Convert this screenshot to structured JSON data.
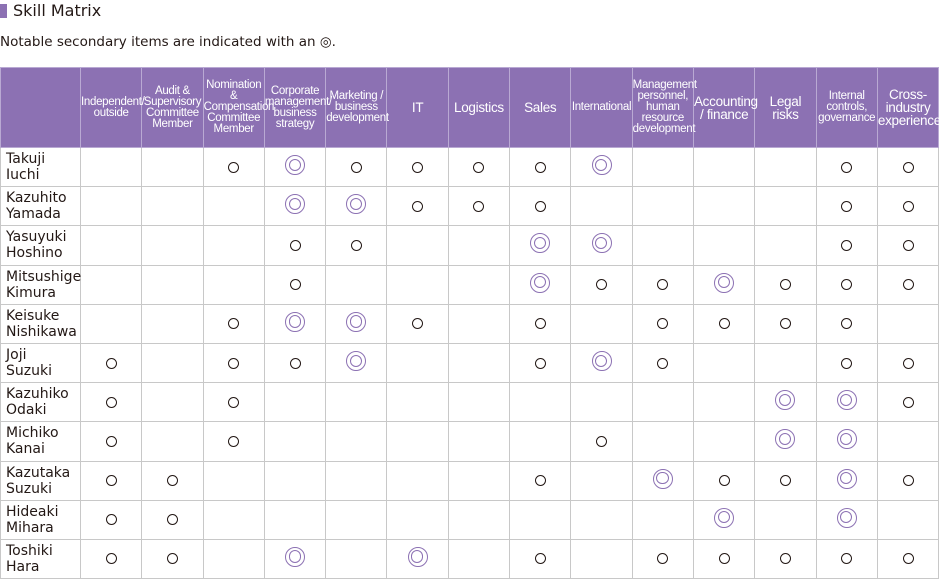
{
  "title": "Skill Matrix",
  "note": "Notable secondary items are indicated with an ◎.",
  "colors": {
    "header_bg": "#8c71b3",
    "title_bar": "#8c71b3",
    "secondary_mark": "#8c71b3",
    "primary_mark": "#231815"
  },
  "legend": {
    "circle": "○",
    "double_circle": "◎"
  },
  "columns": [
    "Independent/\noutside",
    "Audit &\nSupervisory\nCommittee\nMember",
    "Nomination &\nCompensation\nCommittee\nMember",
    "Corporate\nmanagement/\nbusiness\nstrategy",
    "Marketing /\nbusiness\ndevelopment",
    "IT",
    "Logistics",
    "Sales",
    "International",
    "Management\npersonnel,\nhuman\nresource\ndevelopment",
    "Accounting\n/ finance",
    "Legal\nrisks",
    "Internal\ncontrols,\ngovernance",
    "Cross-\nindustry\nexperience"
  ],
  "rows": [
    {
      "name": "Takuji\nIuchi",
      "marks": [
        "",
        "",
        "o",
        "d",
        "o",
        "o",
        "o",
        "o",
        "d",
        "",
        "",
        "",
        "o",
        "o"
      ]
    },
    {
      "name": "Kazuhito\nYamada",
      "marks": [
        "",
        "",
        "",
        "d",
        "d",
        "o",
        "o",
        "o",
        "",
        "",
        "",
        "",
        "o",
        "o"
      ]
    },
    {
      "name": "Yasuyuki\nHoshino",
      "marks": [
        "",
        "",
        "",
        "o",
        "o",
        "",
        "",
        "d",
        "d",
        "",
        "",
        "",
        "o",
        "o"
      ]
    },
    {
      "name": "Mitsushige\nKimura",
      "marks": [
        "",
        "",
        "",
        "o",
        "",
        "",
        "",
        "d",
        "o",
        "o",
        "d",
        "o",
        "o",
        "o"
      ]
    },
    {
      "name": "Keisuke\nNishikawa",
      "marks": [
        "",
        "",
        "o",
        "d",
        "d",
        "o",
        "",
        "o",
        "",
        "o",
        "o",
        "o",
        "o",
        ""
      ]
    },
    {
      "name": "Joji\nSuzuki",
      "marks": [
        "o",
        "",
        "o",
        "o",
        "d",
        "",
        "",
        "o",
        "d",
        "o",
        "",
        "",
        "o",
        "o"
      ]
    },
    {
      "name": "Kazuhiko\nOdaki",
      "marks": [
        "o",
        "",
        "o",
        "",
        "",
        "",
        "",
        "",
        "",
        "",
        "",
        "d",
        "d",
        "o"
      ]
    },
    {
      "name": "Michiko\nKanai",
      "marks": [
        "o",
        "",
        "o",
        "",
        "",
        "",
        "",
        "",
        "o",
        "",
        "",
        "d",
        "d",
        ""
      ]
    },
    {
      "name": "Kazutaka\nSuzuki",
      "marks": [
        "o",
        "o",
        "",
        "",
        "",
        "",
        "",
        "o",
        "",
        "d",
        "o",
        "o",
        "d",
        "o"
      ]
    },
    {
      "name": "Hideaki\nMihara",
      "marks": [
        "o",
        "o",
        "",
        "",
        "",
        "",
        "",
        "",
        "",
        "",
        "d",
        "",
        "d",
        ""
      ]
    },
    {
      "name": "Toshiki\nHara",
      "marks": [
        "o",
        "o",
        "",
        "d",
        "",
        "d",
        "",
        "o",
        "",
        "o",
        "o",
        "o",
        "o",
        "o"
      ]
    }
  ]
}
